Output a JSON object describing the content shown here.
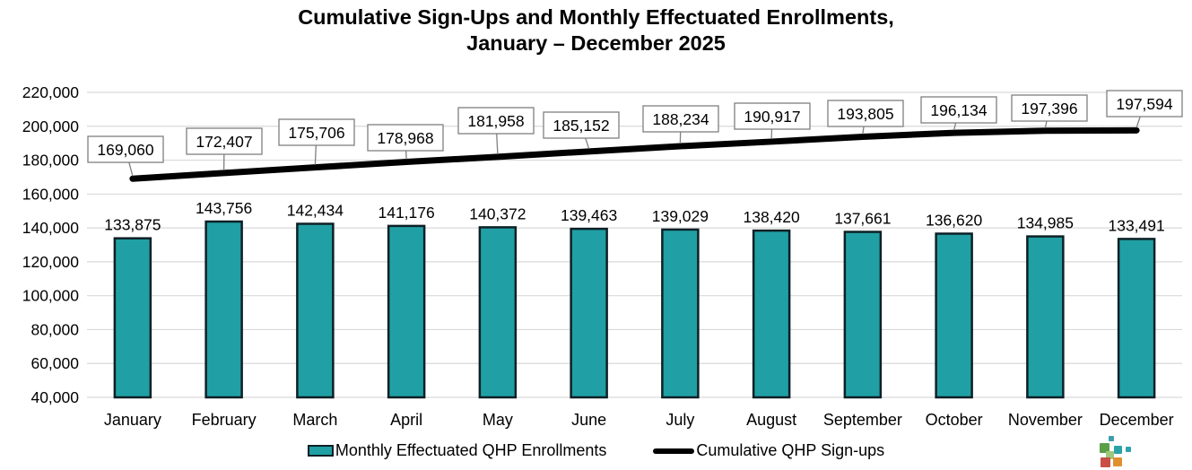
{
  "title": {
    "line1": "Cumulative Sign-Ups and Monthly Effectuated Enrollments,",
    "line2": "January – December 2025"
  },
  "chart_data": {
    "type": "bar",
    "title": "Cumulative Sign-Ups and Monthly Effectuated Enrollments, January – December 2025",
    "categories": [
      "January",
      "February",
      "March",
      "April",
      "May",
      "June",
      "July",
      "August",
      "September",
      "October",
      "November",
      "December"
    ],
    "series": [
      {
        "name": "Monthly Effectuated QHP Enrollments",
        "type": "bar",
        "color": "#20A0A4",
        "values": [
          133875,
          143756,
          142434,
          141176,
          140372,
          139463,
          139029,
          138420,
          137661,
          136620,
          134985,
          133491
        ]
      },
      {
        "name": "Cumulative QHP Sign-ups",
        "type": "line",
        "color": "#000000",
        "values": [
          169060,
          172407,
          175706,
          178968,
          181958,
          185152,
          188234,
          190917,
          193805,
          196134,
          197396,
          197594
        ]
      }
    ],
    "xlabel": "",
    "ylabel": "",
    "ylim": [
      40000,
      220000
    ],
    "y_step": 20000,
    "y_tick_labels": [
      "40,000",
      "60,000",
      "80,000",
      "100,000",
      "120,000",
      "140,000",
      "160,000",
      "180,000",
      "200,000",
      "220,000"
    ],
    "grid": true,
    "legend_position": "bottom",
    "data_labels": "all"
  },
  "colors": {
    "bar_fill": "#20A0A4",
    "bar_stroke": "#0D2026",
    "line": "#000000",
    "gridline": "#D9D9D9",
    "label_box_border": "#7F7F7F",
    "leader_line": "#7F7F7F",
    "text": "#000000",
    "background": "#FFFFFF"
  },
  "logo": {
    "name": "colored-squares-logo",
    "squares": [
      {
        "color": "#3E9EAE"
      },
      {
        "color": "#5BA049"
      },
      {
        "color": "#28A3A8"
      },
      {
        "color": "#2FA3AC"
      },
      {
        "color": "#9DC87D"
      },
      {
        "color": "#C94F44"
      },
      {
        "color": "#E0912F"
      }
    ]
  }
}
